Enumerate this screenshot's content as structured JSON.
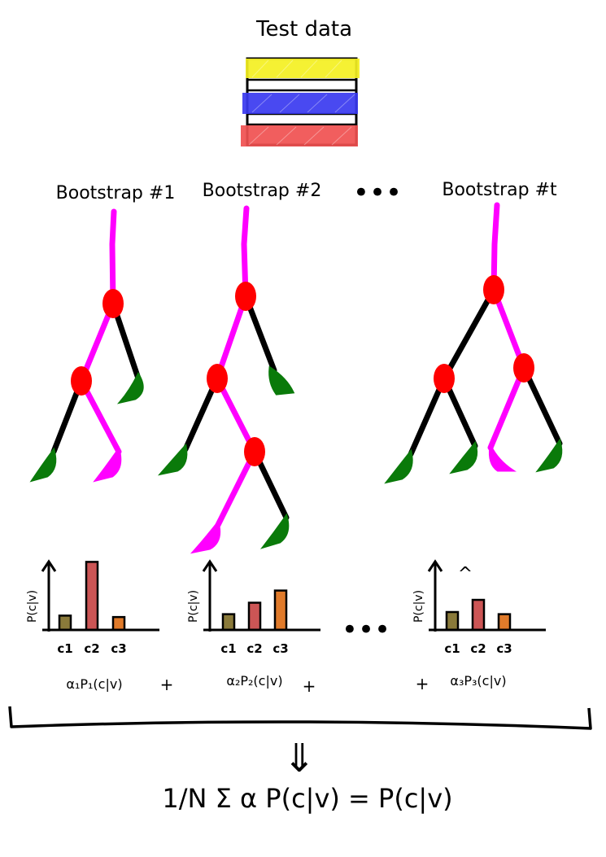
{
  "title": "Test data",
  "bootstraps": [
    "Bootstrap #1",
    "Bootstrap #2",
    "Bootstrap #t"
  ],
  "dots": "•••",
  "histograms": [
    {
      "ylabel": "P(c|v)",
      "categories": [
        "c1",
        "c2",
        "c3"
      ],
      "values": [
        0.2,
        0.95,
        0.18
      ]
    },
    {
      "ylabel": "P(c|v)",
      "categories": [
        "c1",
        "c2",
        "c3"
      ],
      "values": [
        0.22,
        0.38,
        0.55
      ]
    },
    {
      "ylabel": "P(c|v)",
      "categories": [
        "c1",
        "c2",
        "c3"
      ],
      "values": [
        0.25,
        0.42,
        0.22
      ]
    }
  ],
  "weighted_terms": [
    "α₁P₁(c|v)",
    "α₂P₂(c|v)",
    "α₃P₃(c|v)"
  ],
  "plus": "+",
  "arrow": "⇓",
  "formula": "1/N Σ α P(c|v) = P(c|v)",
  "hat": "^",
  "colors": {
    "yellow": "#f4f022",
    "blue": "#3a3af0",
    "red": "#f05050",
    "magenta": "#ff00ff",
    "node": "#ff0000",
    "leaf": "#0a7a0a",
    "bar1": "#8a7a3a",
    "bar2": "#cc5555",
    "bar3": "#e07a2a"
  }
}
